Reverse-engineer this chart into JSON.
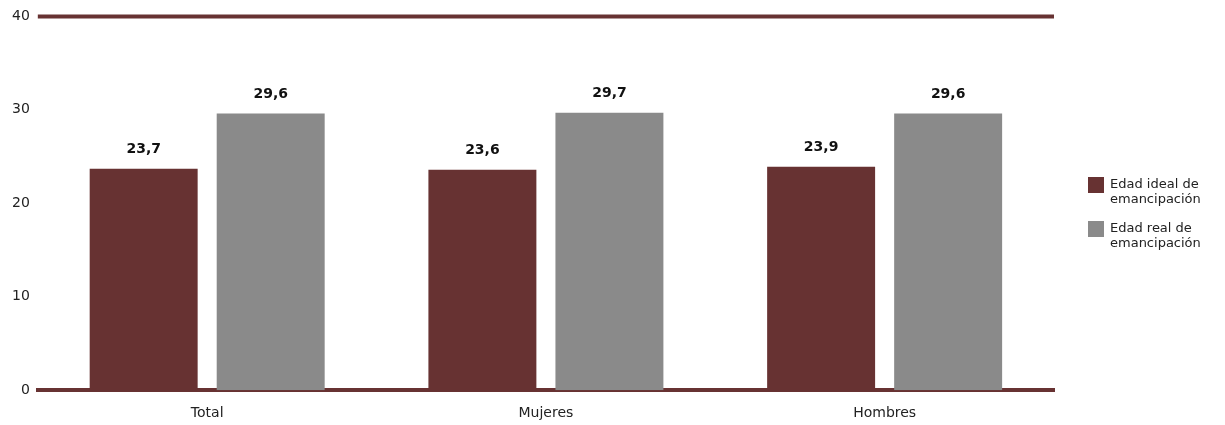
{
  "chart_data": {
    "type": "bar",
    "categories": [
      "Total",
      "Mujeres",
      "Hombres"
    ],
    "series": [
      {
        "name": "Edad ideal de emancipación",
        "color": "#673232",
        "values": [
          23.7,
          23.6,
          23.9
        ],
        "value_labels": [
          "23,7",
          "23,6",
          "23,9"
        ]
      },
      {
        "name": "Edad real de emancipación",
        "color": "#8a8a8a",
        "values": [
          29.6,
          29.7,
          29.6
        ],
        "value_labels": [
          "29,6",
          "29,7",
          "29,6"
        ]
      }
    ],
    "ylim": [
      0,
      40
    ],
    "yticks": [
      0,
      10,
      20,
      30,
      40
    ],
    "grid": false,
    "legend": "right",
    "ref_lines": [
      {
        "axis": "y",
        "value": 40,
        "color": "#673232"
      }
    ]
  }
}
